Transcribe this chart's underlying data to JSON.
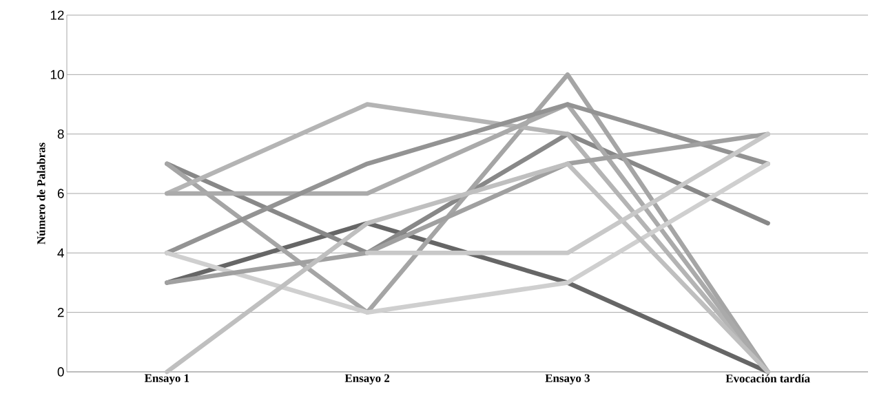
{
  "chart_data": {
    "type": "line",
    "ylabel": "Número de Palabras",
    "categories": [
      "Ensayo 1",
      "Ensayo 2",
      "Ensayo 3",
      "Evocación tardía"
    ],
    "ylim": [
      0,
      12
    ],
    "yticks": [
      0,
      2,
      4,
      6,
      8,
      10,
      12
    ],
    "grid": "y",
    "marker": "none",
    "line_style": "solid",
    "series": [
      {
        "color": "#666666",
        "values": [
          3,
          5,
          3,
          0
        ]
      },
      {
        "color": "#888888",
        "values": [
          7,
          4,
          8,
          5
        ]
      },
      {
        "color": "#a5a5a5",
        "values": [
          7,
          2,
          10,
          0
        ]
      },
      {
        "color": "#b4b4b4",
        "values": [
          6,
          9,
          8,
          0
        ]
      },
      {
        "color": "#aaaaaa",
        "values": [
          6,
          6,
          9,
          0
        ]
      },
      {
        "color": "#939393",
        "values": [
          4,
          7,
          9,
          7
        ]
      },
      {
        "color": "#cfcfcf",
        "values": [
          4,
          2,
          3,
          7
        ]
      },
      {
        "color": "#a0a0a0",
        "values": [
          3,
          4,
          7,
          8
        ]
      },
      {
        "color": "#bfbfbf",
        "values": [
          0,
          5,
          7,
          0
        ]
      },
      {
        "color": "#c8c8c8",
        "values": [
          null,
          4,
          4,
          8
        ]
      }
    ]
  }
}
